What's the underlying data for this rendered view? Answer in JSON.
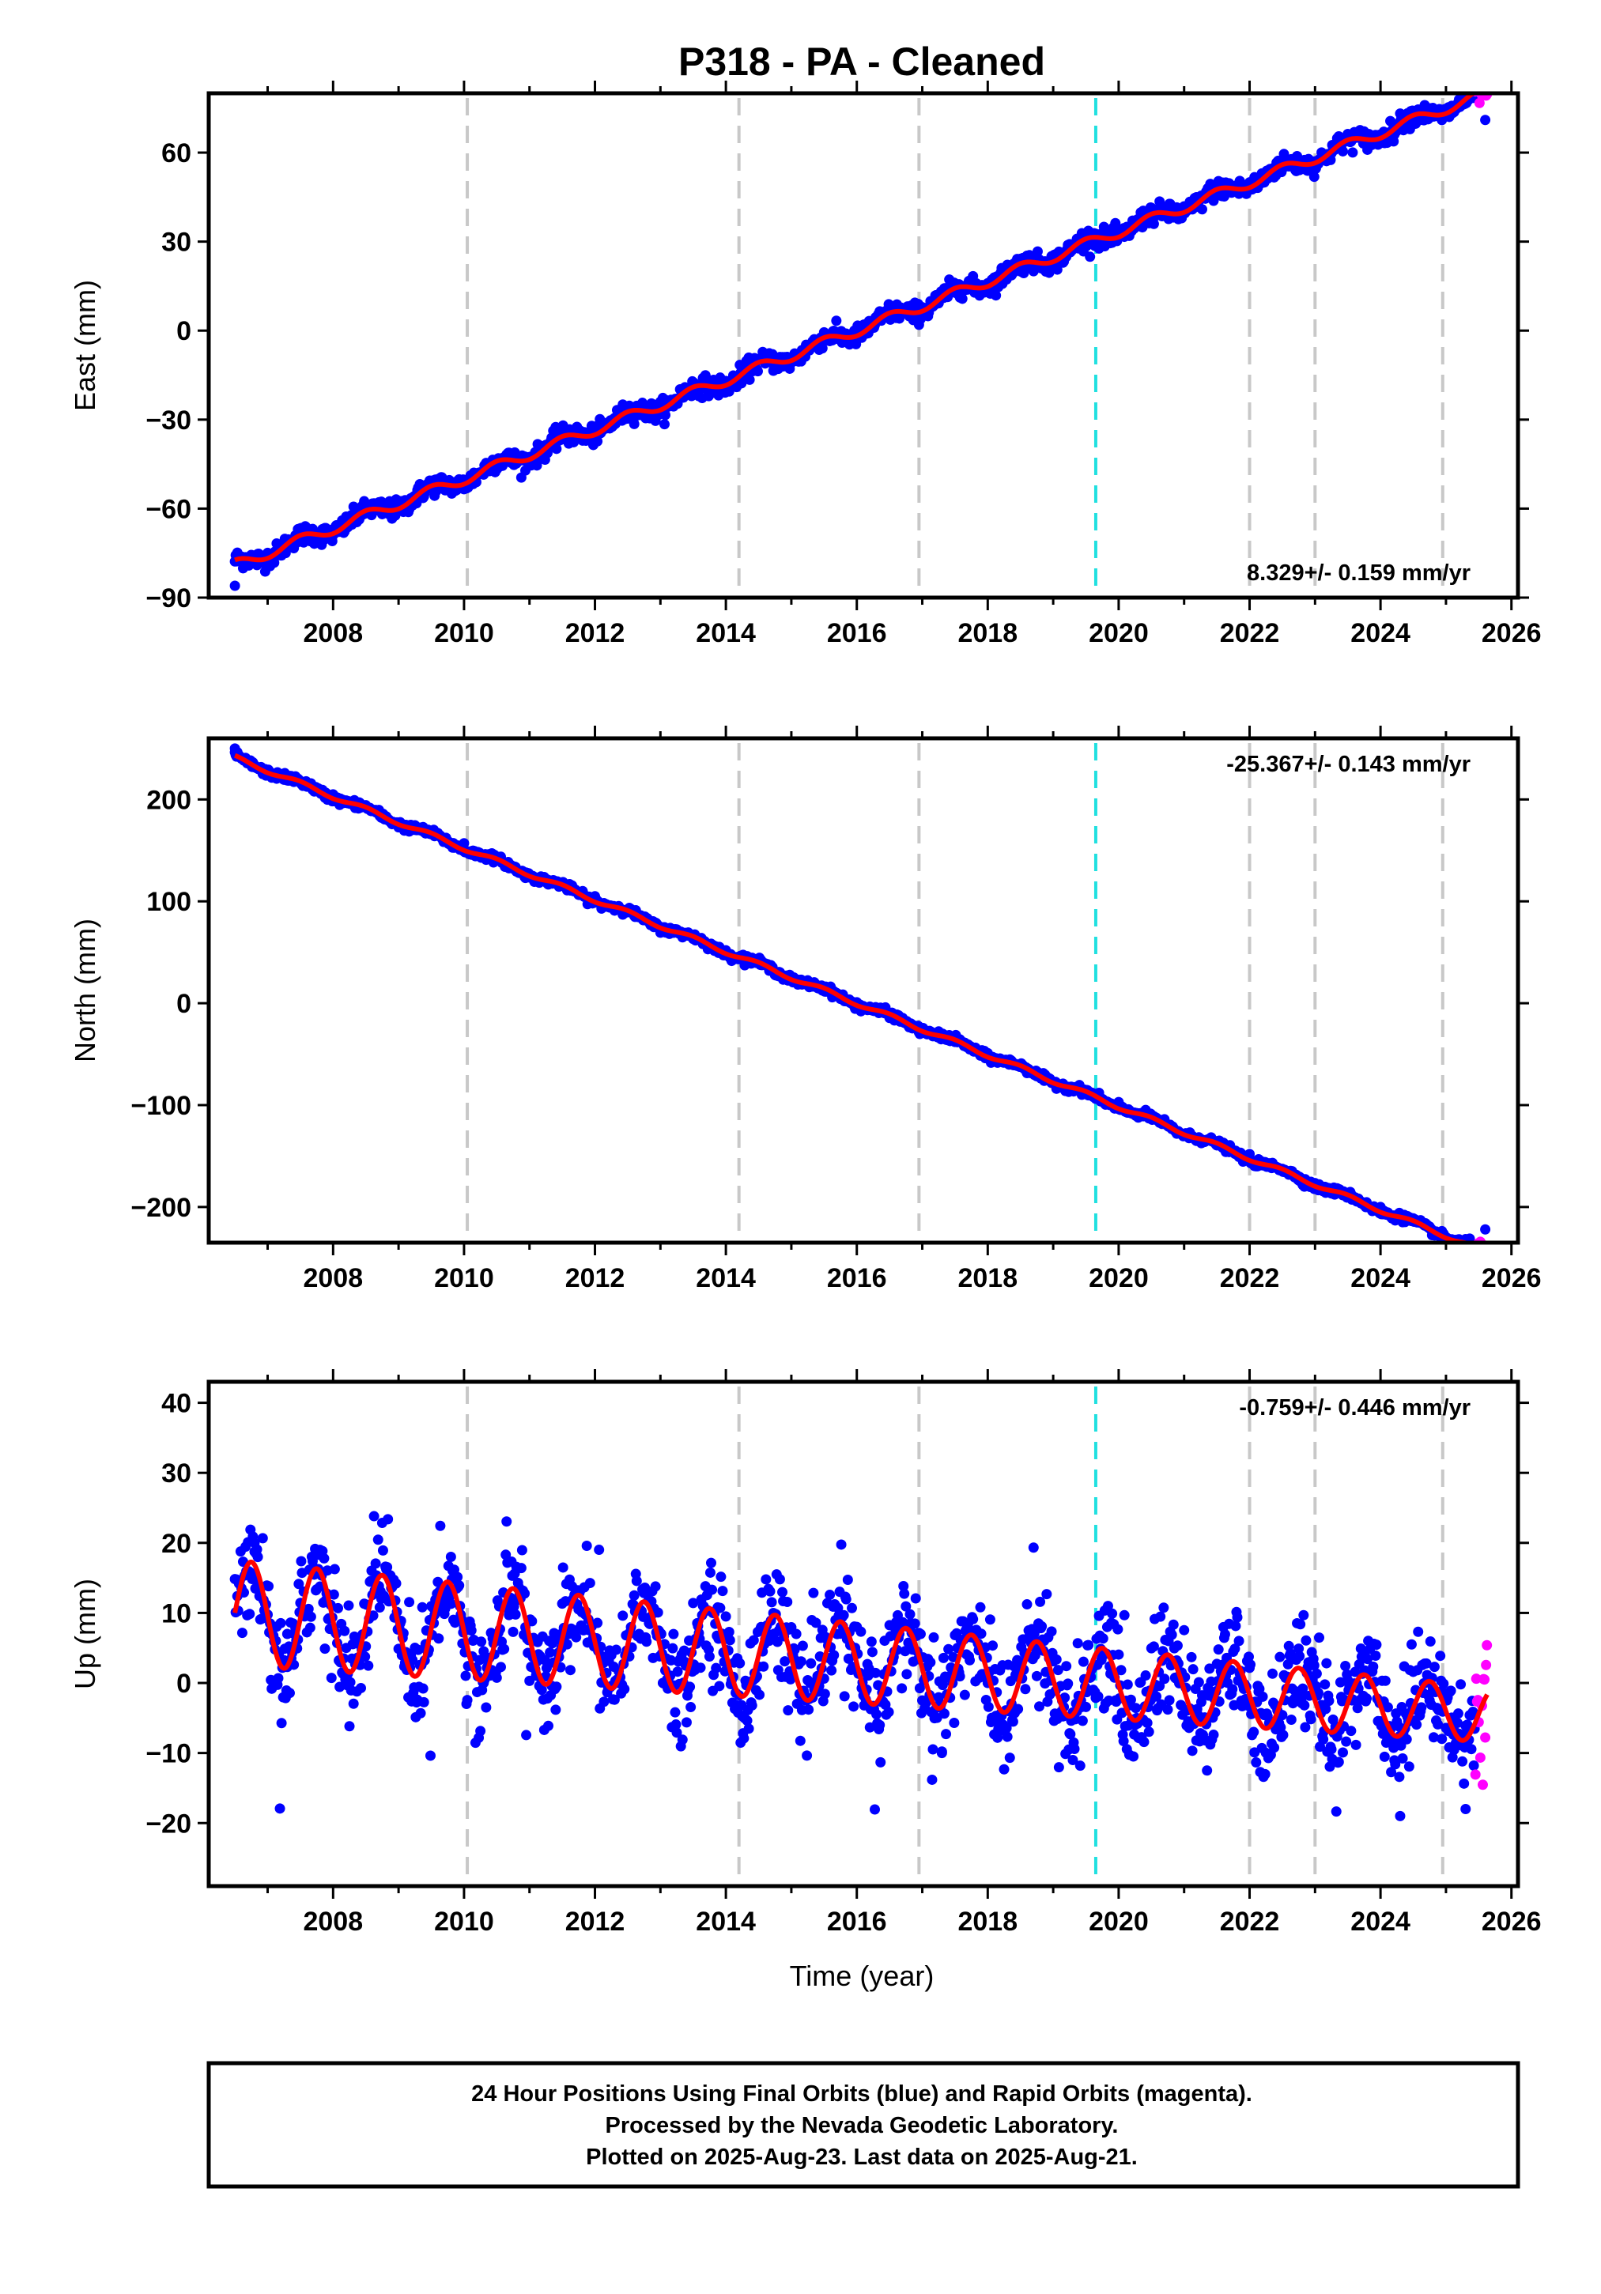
{
  "chart_data": {
    "type": "scatter",
    "title": "P318  - PA - Cleaned",
    "xlabel": "Time (year)",
    "x_ticks": [
      2008,
      2010,
      2012,
      2014,
      2016,
      2018,
      2020,
      2022,
      2024,
      2026
    ],
    "x_range": [
      2006.1,
      2026.1
    ],
    "event_lines": [
      {
        "x": 2010.05,
        "color": "#c8c8c8"
      },
      {
        "x": 2014.2,
        "color": "#c8c8c8"
      },
      {
        "x": 2016.95,
        "color": "#c8c8c8"
      },
      {
        "x": 2019.65,
        "color": "#20e0e0"
      },
      {
        "x": 2022.0,
        "color": "#c8c8c8"
      },
      {
        "x": 2023.0,
        "color": "#c8c8c8"
      },
      {
        "x": 2024.95,
        "color": "#c8c8c8"
      }
    ],
    "series_colors": {
      "final": "#0000ff",
      "rapid": "#ff00ff",
      "model": "#ff0000"
    },
    "panels": [
      {
        "ylabel": "East (mm)",
        "ylim": [
          -90,
          80
        ],
        "y_ticks": [
          60,
          30,
          0,
          -30,
          -60,
          -90
        ],
        "y_tick_labels": [
          "60",
          "30",
          "0",
          "−30",
          "−60",
          "−90"
        ],
        "rate_text": "8.329+/- 0.159 mm/yr",
        "rate_position": "bottom-right",
        "fit": {
          "t0": 2016.0,
          "y0": 0,
          "slope": 8.329,
          "annual_amp": 1.8,
          "noise": 1.6
        },
        "data_points": [
          {
            "x": 2006.5,
            "y": -86
          },
          {
            "x": 2008.0,
            "y": -69
          },
          {
            "x": 2010.0,
            "y": -52
          },
          {
            "x": 2012.0,
            "y": -35
          },
          {
            "x": 2014.0,
            "y": -17
          },
          {
            "x": 2016.0,
            "y": 0
          },
          {
            "x": 2018.0,
            "y": 16
          },
          {
            "x": 2020.0,
            "y": 33
          },
          {
            "x": 2022.0,
            "y": 50
          },
          {
            "x": 2024.0,
            "y": 66
          },
          {
            "x": 2025.6,
            "y": 71
          }
        ]
      },
      {
        "ylabel": "North (mm)",
        "ylim": [
          -235,
          260
        ],
        "y_ticks": [
          200,
          100,
          0,
          -100,
          -200
        ],
        "y_tick_labels": [
          "200",
          "100",
          "0",
          "−100",
          "−200"
        ],
        "rate_text": "-25.367+/- 0.143 mm/yr",
        "rate_position": "top-right",
        "fit": {
          "t0": 2016.0,
          "y0": 0,
          "slope": -25.367,
          "annual_amp": 2.2,
          "noise": 1.8
        },
        "data_points": [
          {
            "x": 2006.5,
            "y": 250
          },
          {
            "x": 2008.0,
            "y": 205
          },
          {
            "x": 2010.0,
            "y": 157
          },
          {
            "x": 2012.0,
            "y": 105
          },
          {
            "x": 2014.0,
            "y": 52
          },
          {
            "x": 2016.0,
            "y": 1
          },
          {
            "x": 2018.0,
            "y": -49
          },
          {
            "x": 2020.0,
            "y": -97
          },
          {
            "x": 2022.0,
            "y": -148
          },
          {
            "x": 2024.0,
            "y": -200
          },
          {
            "x": 2025.6,
            "y": -222
          }
        ]
      },
      {
        "ylabel": "Up (mm)",
        "ylim": [
          -29,
          43
        ],
        "y_ticks": [
          40,
          30,
          20,
          10,
          0,
          -10,
          -20
        ],
        "y_tick_labels": [
          "40",
          "30",
          "20",
          "10",
          "0",
          "−10",
          "−20"
        ],
        "rate_text": "-0.759+/- 0.446 mm/yr",
        "rate_position": "top-right",
        "fit": {
          "t0": 2016.0,
          "y0": 2.8,
          "slope": -0.759,
          "annual_amp": 7.5,
          "annual_peak": 0.75,
          "noise": 3.8
        },
        "data_points": [
          {
            "x": 2006.8,
            "y": 20
          },
          {
            "x": 2007.3,
            "y": 7
          },
          {
            "x": 2007.8,
            "y": 19
          },
          {
            "x": 2009.8,
            "y": 18
          },
          {
            "x": 2010.3,
            "y": 0
          },
          {
            "x": 2013.8,
            "y": 10
          },
          {
            "x": 2016.8,
            "y": 8
          },
          {
            "x": 2017.3,
            "y": -10
          },
          {
            "x": 2019.3,
            "y": -11
          },
          {
            "x": 2022.8,
            "y": -2
          },
          {
            "x": 2024.3,
            "y": -19
          },
          {
            "x": 2025.3,
            "y": -18
          }
        ]
      }
    ]
  },
  "footer": {
    "line1": "24 Hour Positions Using Final Orbits (blue) and Rapid Orbits (magenta).",
    "line2": "Processed by the Nevada Geodetic Laboratory.",
    "line3": "Plotted on 2025-Aug-23. Last data on 2025-Aug-21."
  }
}
